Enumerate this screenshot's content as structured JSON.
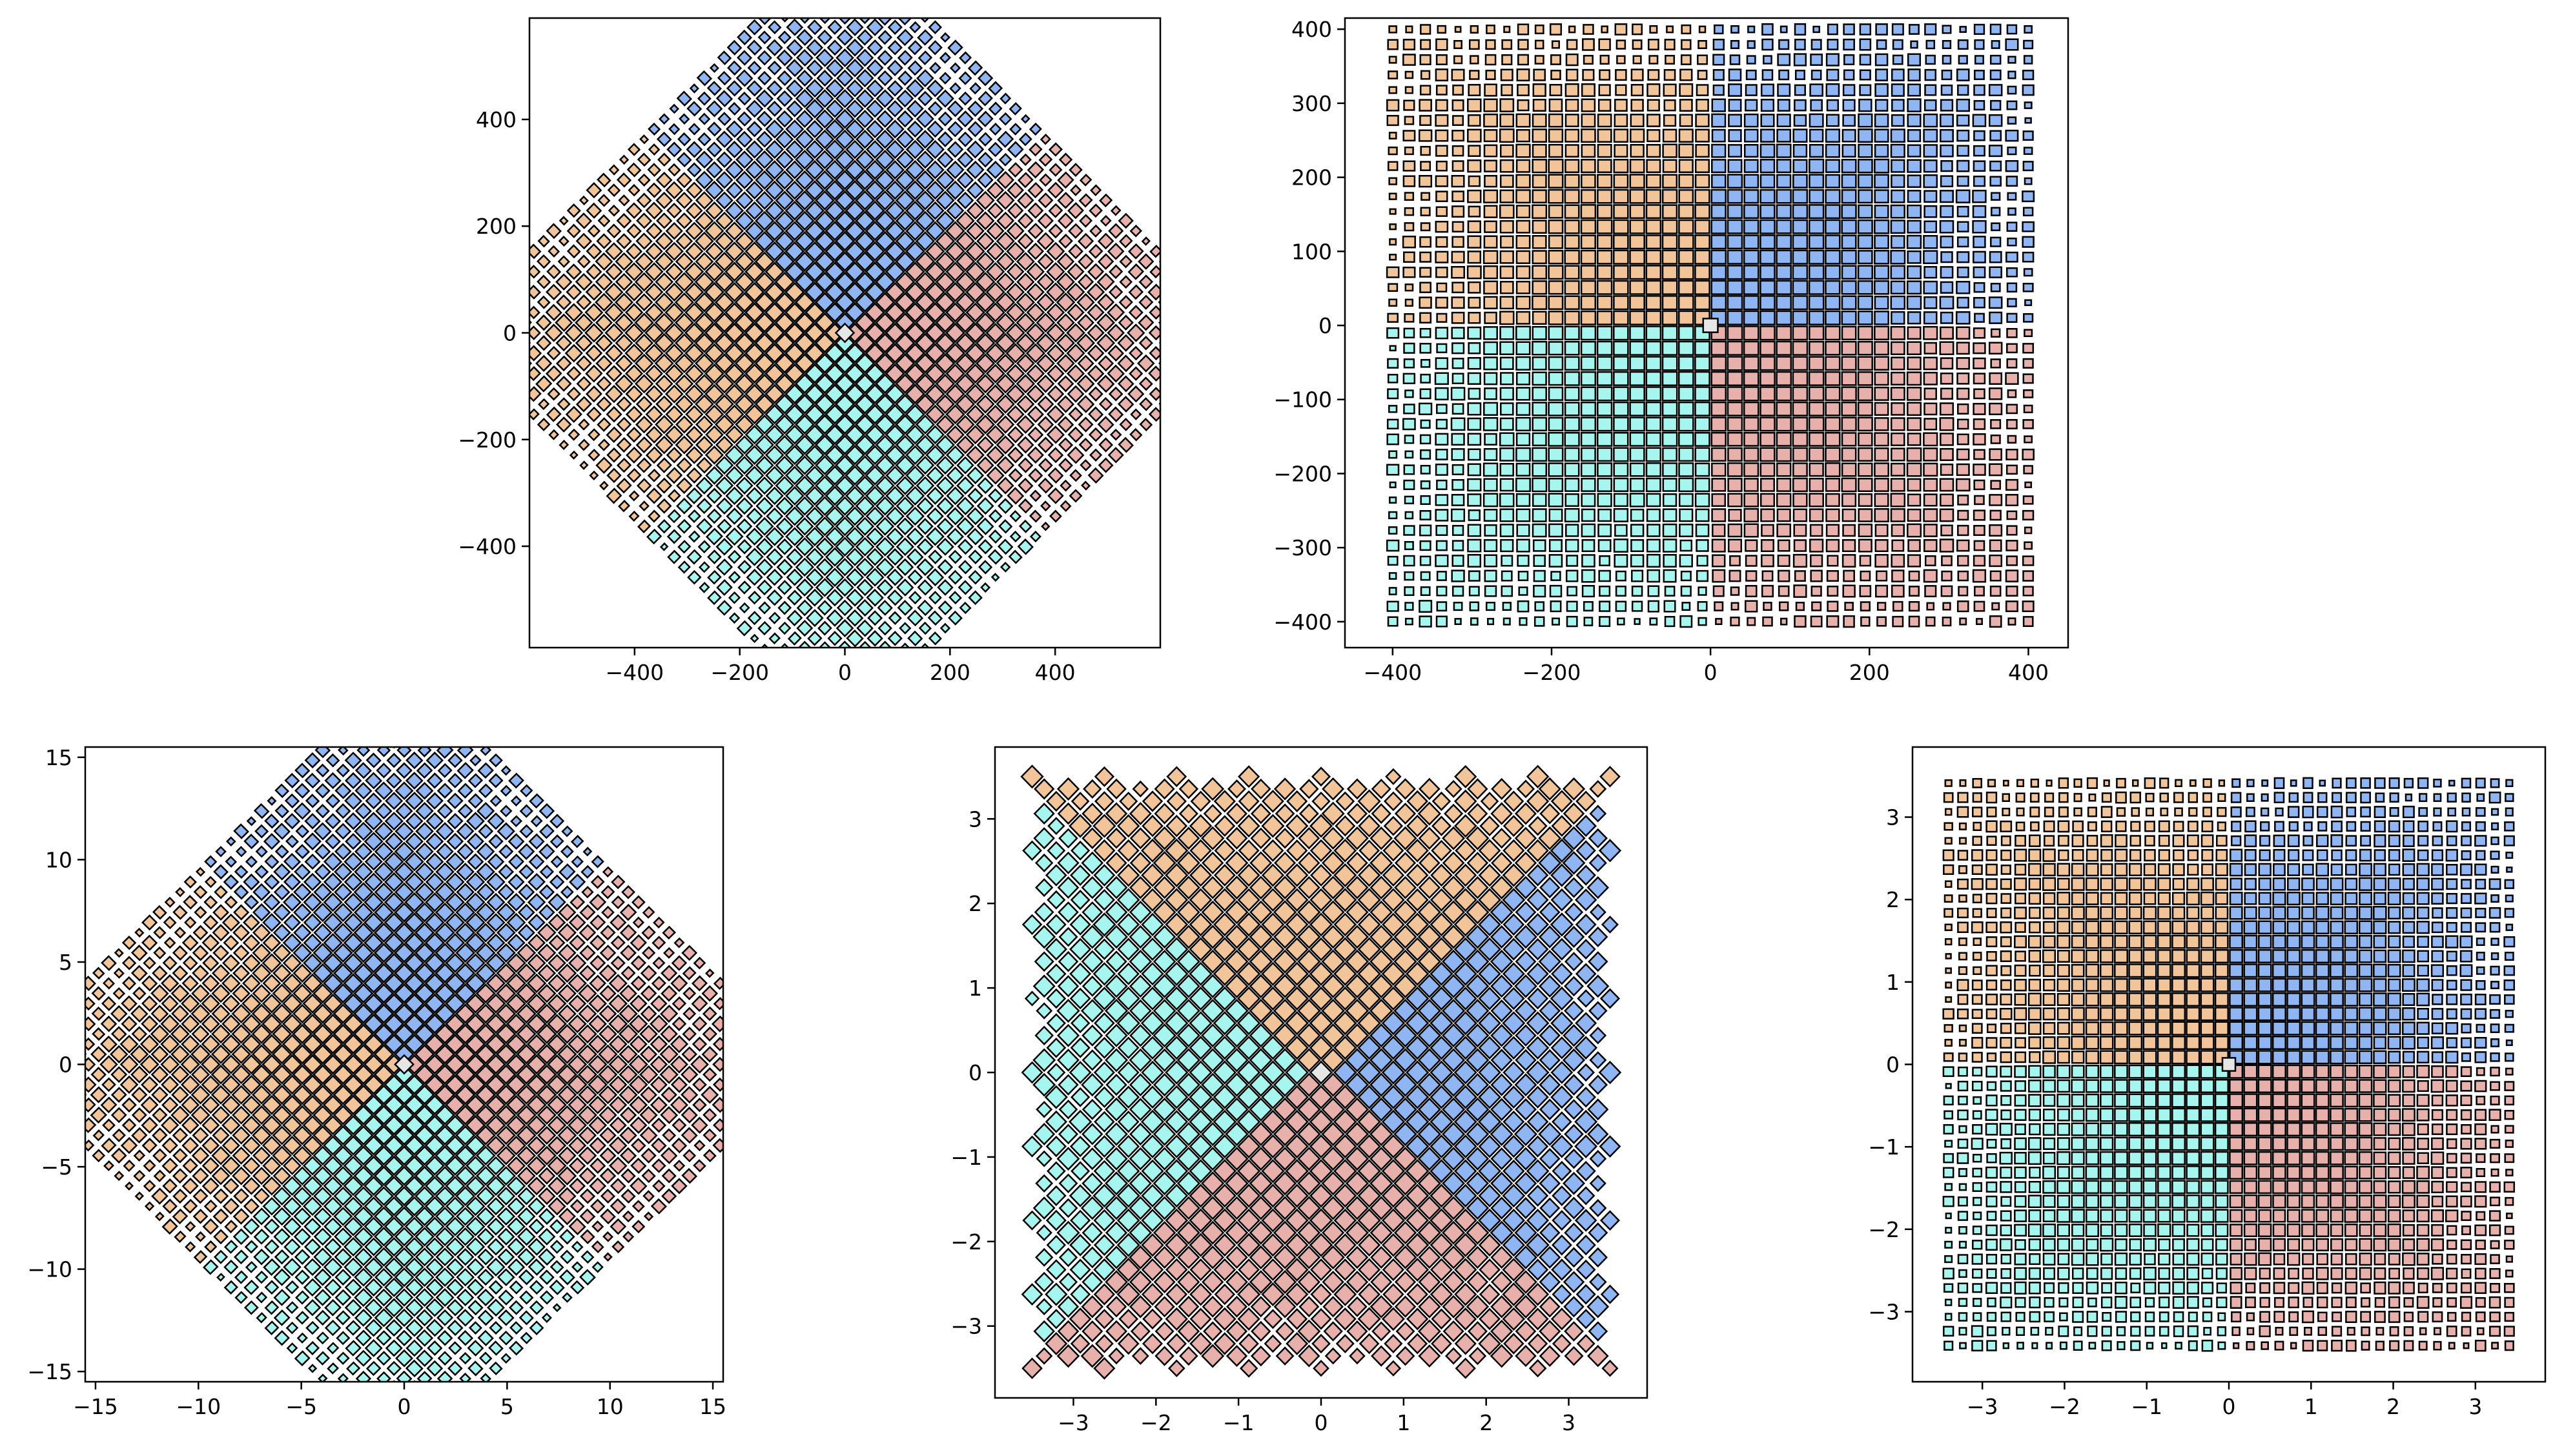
{
  "figure": {
    "background": "#ffffff",
    "edge_color": "#000000"
  },
  "colors": {
    "top": "#f2c499",
    "right": "#8fb6f2",
    "bottom": "#e8b0aa",
    "left": "#a6f5ee",
    "center": "#e6e6e6"
  },
  "chart_data": [
    {
      "type": "heatmap",
      "description_kind": "rotated quadrant grid of cells",
      "title": "",
      "xlabel": "",
      "ylabel": "",
      "layout": "rotated_diamond",
      "extent": 540,
      "grid_n": 20,
      "xlim": [
        -600,
        600
      ],
      "ylim": [
        -590,
        590
      ],
      "xticks": [
        -400,
        -200,
        0,
        200,
        400
      ],
      "yticks": [
        -400,
        -200,
        0,
        200,
        400
      ],
      "xtick_labels": [
        "−400",
        "−200",
        "0",
        "200",
        "400"
      ],
      "ytick_labels": [
        "−400",
        "−200",
        "0",
        "200",
        "400"
      ],
      "grid": false,
      "legend": "none"
    },
    {
      "type": "heatmap",
      "description_kind": "quadrant grid of cells",
      "title": "",
      "xlabel": "",
      "ylabel": "",
      "layout": "square_quadrants",
      "extent": 410,
      "grid_n": 20,
      "xlim": [
        -460,
        450
      ],
      "ylim": [
        -435,
        415
      ],
      "xticks": [
        -400,
        -200,
        0,
        200,
        400
      ],
      "yticks": [
        -400,
        -300,
        -200,
        -100,
        0,
        100,
        200,
        300,
        400
      ],
      "xtick_labels": [
        "−400",
        "−200",
        "0",
        "200",
        "400"
      ],
      "ytick_labels": [
        "−400",
        "−300",
        "−200",
        "−100",
        "0",
        "100",
        "200",
        "300",
        "400"
      ],
      "grid": false,
      "legend": "none"
    },
    {
      "type": "heatmap",
      "description_kind": "rotated quadrant grid of cells",
      "title": "",
      "xlabel": "",
      "ylabel": "",
      "layout": "rotated_diamond",
      "extent": 14,
      "grid_n": 20,
      "xlim": [
        -15.5,
        15.5
      ],
      "ylim": [
        -15.5,
        15.5
      ],
      "xticks": [
        -15,
        -10,
        -5,
        0,
        5,
        10,
        15
      ],
      "yticks": [
        -15,
        -10,
        -5,
        0,
        5,
        10,
        15
      ],
      "xtick_labels": [
        "−15",
        "−10",
        "−5",
        "0",
        "5",
        "10",
        "15"
      ],
      "ytick_labels": [
        "−15",
        "−10",
        "−5",
        "0",
        "5",
        "10",
        "15"
      ],
      "grid": false,
      "legend": "none"
    },
    {
      "type": "heatmap",
      "description_kind": "diagonal quadrant grid of cells",
      "title": "",
      "xlabel": "",
      "ylabel": "",
      "layout": "square_diagonal",
      "extent": 3.5,
      "grid_n": 24,
      "xlim": [
        -3.95,
        3.95
      ],
      "ylim": [
        -3.85,
        3.85
      ],
      "xticks": [
        -3,
        -2,
        -1,
        0,
        1,
        2,
        3
      ],
      "yticks": [
        -3,
        -2,
        -1,
        0,
        1,
        2,
        3
      ],
      "xtick_labels": [
        "−3",
        "−2",
        "−1",
        "0",
        "1",
        "2",
        "3"
      ],
      "ytick_labels": [
        "−3",
        "−2",
        "−1",
        "0",
        "1",
        "2",
        "3"
      ],
      "grid": false,
      "legend": "none"
    },
    {
      "type": "heatmap",
      "description_kind": "quadrant grid of cells",
      "title": "",
      "xlabel": "",
      "ylabel": "",
      "layout": "square_quadrants",
      "extent": 3.5,
      "grid_n": 20,
      "xlim": [
        -3.85,
        3.85
      ],
      "ylim": [
        -3.85,
        3.85
      ],
      "xticks": [
        -3,
        -2,
        -1,
        0,
        1,
        2,
        3
      ],
      "yticks": [
        -3,
        -2,
        -1,
        0,
        1,
        2,
        3
      ],
      "xtick_labels": [
        "−3",
        "−2",
        "−1",
        "0",
        "1",
        "2",
        "3"
      ],
      "ytick_labels": [
        "−3",
        "−2",
        "−1",
        "0",
        "1",
        "2",
        "3"
      ],
      "grid": false,
      "legend": "none"
    }
  ]
}
